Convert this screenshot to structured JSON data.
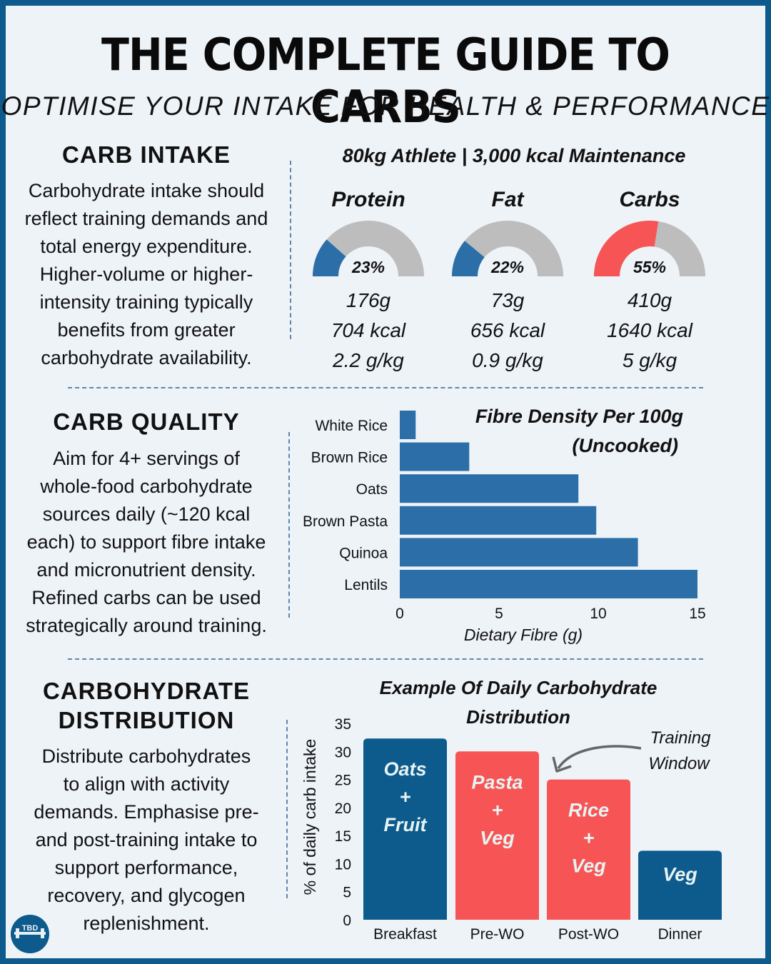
{
  "header": {
    "title": "THE COMPLETE GUIDE TO CARBS",
    "subtitle": "OPTIMISE YOUR INTAKE FOR HEALTH & PERFORMANCE"
  },
  "colors": {
    "frame": "#0d5a8c",
    "background": "#eef3f8",
    "blue_bar": "#2c6fa8",
    "navy_bar": "#0d5a8c",
    "red_bar": "#f75555",
    "gauge_track": "#bdbdbd"
  },
  "sections": {
    "carb_intake": {
      "heading": "CARB INTAKE",
      "body": [
        "Carbohydrate intake should",
        "reflect training demands and",
        "total energy expenditure.",
        "Higher-volume or higher-",
        "intensity training typically",
        "benefits from greater",
        "carbohydrate availability."
      ]
    },
    "carb_quality": {
      "heading": "CARB QUALITY",
      "body": [
        "Aim for 4+ servings of",
        "whole-food carbohydrate",
        "sources daily (~120 kcal",
        "each) to support fibre intake",
        "and micronutrient density.",
        "Refined carbs can be used",
        "strategically around training."
      ]
    },
    "carb_distribution": {
      "heading_line1": "CARBOHYDRATE",
      "heading_line2": "DISTRIBUTION",
      "body": [
        "Distribute carbohydrates",
        "to align with activity",
        "demands. Emphasise pre-",
        "and post-training intake to",
        "support performance,",
        "recovery, and glycogen",
        "replenishment."
      ]
    }
  },
  "macros": {
    "heading": "80kg Athlete | 3,000 kcal Maintenance",
    "items": [
      {
        "name": "Protein",
        "percent": 23,
        "percent_label": "23%",
        "grams": "176g",
        "kcal": "704 kcal",
        "per_kg": "2.2 g/kg",
        "color": "#2c6fa8"
      },
      {
        "name": "Fat",
        "percent": 22,
        "percent_label": "22%",
        "grams": "73g",
        "kcal": "656 kcal",
        "per_kg": "0.9 g/kg",
        "color": "#2c6fa8"
      },
      {
        "name": "Carbs",
        "percent": 55,
        "percent_label": "55%",
        "grams": "410g",
        "kcal": "1640 kcal",
        "per_kg": "5 g/kg",
        "color": "#f75555"
      }
    ]
  },
  "logo": {
    "text": "TBD"
  },
  "chart_data": [
    {
      "type": "bar",
      "orientation": "horizontal",
      "title_line1": "Fibre Density Per 100g",
      "title_line2": "(Uncooked)",
      "categories": [
        "White Rice",
        "Brown Rice",
        "Oats",
        "Brown Pasta",
        "Quinoa",
        "Lentils"
      ],
      "values": [
        0.8,
        3.5,
        9.0,
        9.9,
        12.0,
        15.0
      ],
      "xlabel": "Dietary Fibre (g)",
      "ylabel": "",
      "xlim": [
        0,
        15
      ],
      "xticks": [
        "0",
        "5",
        "10",
        "15"
      ],
      "grid": false,
      "color": "#2c6fa8"
    },
    {
      "type": "bar",
      "orientation": "vertical",
      "title_line1": "Example Of Daily Carbohydrate",
      "title_line2": "Distribution",
      "categories": [
        "Breakfast",
        "Pre-WO",
        "Post-WO",
        "Dinner"
      ],
      "values": [
        32.3,
        30.0,
        25.0,
        12.3
      ],
      "bar_labels": [
        [
          "Oats",
          "+",
          "Fruit"
        ],
        [
          "Pasta",
          "+",
          "Veg"
        ],
        [
          "Rice",
          "+",
          "Veg"
        ],
        [
          "Veg"
        ]
      ],
      "bar_colors": [
        "#0d5a8c",
        "#f75555",
        "#f75555",
        "#0d5a8c"
      ],
      "ylabel": "% of daily carb intake",
      "xlabel": "",
      "ylim": [
        0,
        35
      ],
      "yticks": [
        "0",
        "5",
        "10",
        "15",
        "20",
        "25",
        "30",
        "35"
      ],
      "grid": false,
      "annotation": {
        "line1": "Training",
        "line2": "Window",
        "points_to": "Pre-WO / Post-WO"
      }
    }
  ]
}
